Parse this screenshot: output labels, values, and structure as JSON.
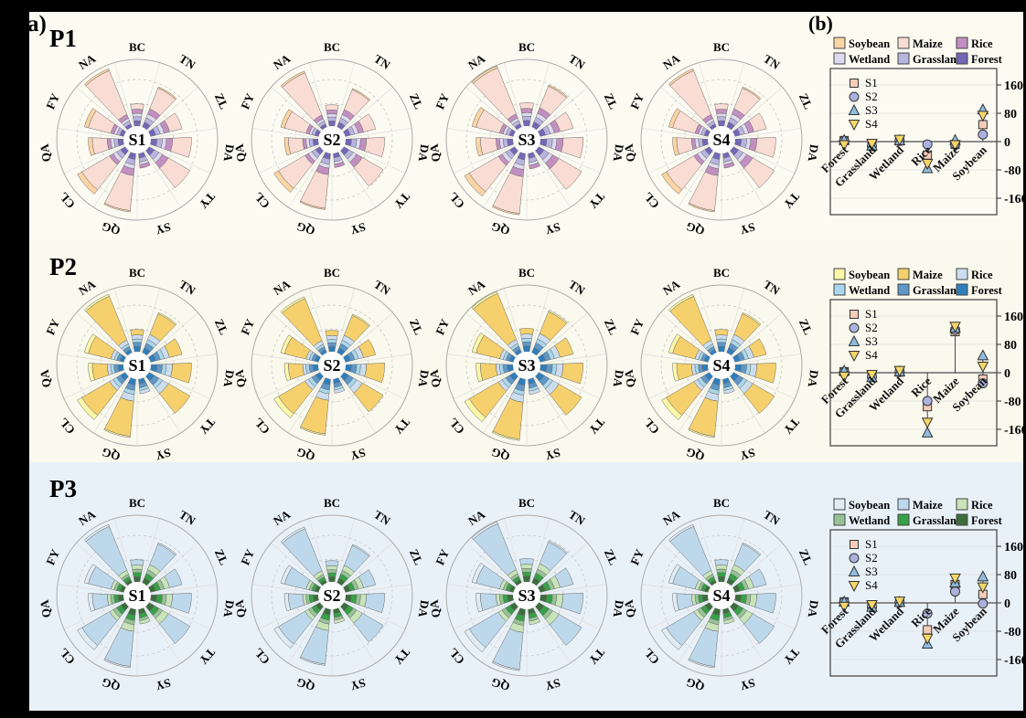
{
  "panel_a_label": "a)",
  "panel_b_label": "(b)",
  "rows": [
    {
      "label": "P1",
      "bg": "#FCFBF2",
      "palette": {
        "soybean": "#FAD4A3",
        "maize": "#F9DCD3",
        "rice": "#C38FC1",
        "wetland": "#DEDAEF",
        "grassland": "#B7B4E0",
        "forest": "#7367B7"
      }
    },
    {
      "label": "P2",
      "bg": "#FAF9ED",
      "palette": {
        "soybean": "#FAF7A8",
        "maize": "#F5D06C",
        "rice": "#CCDDEF",
        "wetland": "#A8D8EB",
        "grassland": "#6097C6",
        "forest": "#2F7EBC"
      }
    },
    {
      "label": "P3",
      "bg": "#E9F1F8",
      "palette": {
        "soybean": "#DFECF4",
        "maize": "#BED8EB",
        "rice": "#C9E4B9",
        "wetland": "#97C296",
        "grassland": "#37A048",
        "forest": "#3C6E3C"
      }
    }
  ],
  "legend": {
    "row1": [
      "Soybean",
      "Maize",
      "Rice"
    ],
    "row2": [
      "Wetland",
      "Grassland",
      "Forest"
    ]
  },
  "series_legend": [
    {
      "name": "S1",
      "marker": "square",
      "color": "#F7CDB9"
    },
    {
      "name": "S2",
      "marker": "circle",
      "color": "#ACB2DD"
    },
    {
      "name": "S3",
      "marker": "triangle-up",
      "color": "#8FBEDF"
    },
    {
      "name": "S4",
      "marker": "triangle-down",
      "color": "#F6D669"
    }
  ],
  "chart_data": {
    "rose": {
      "type": "polar-stacked-bar",
      "sector_labels": [
        "BC",
        "TN",
        "ZL",
        "DA",
        "TY",
        "SY",
        "QG",
        "CL",
        "QA",
        "FY",
        "NA"
      ],
      "stack_order": [
        "forest",
        "grassland",
        "wetland",
        "rice",
        "maize",
        "soybean"
      ],
      "sector_values": [
        [
          8,
          6,
          5,
          6,
          8,
          0
        ],
        [
          8,
          7,
          6,
          8,
          33,
          2
        ],
        [
          8,
          7,
          6,
          8,
          19,
          0
        ],
        [
          9,
          8,
          6,
          9,
          28,
          0
        ],
        [
          9,
          8,
          6,
          10,
          37,
          0
        ],
        [
          7,
          6,
          4,
          5,
          0,
          0
        ],
        [
          9,
          8,
          6,
          10,
          52,
          2
        ],
        [
          8,
          7,
          6,
          6,
          47,
          8
        ],
        [
          8,
          6,
          5,
          5,
          22,
          6
        ],
        [
          6,
          5,
          4,
          5,
          34,
          6
        ],
        [
          5,
          5,
          4,
          6,
          70,
          3
        ]
      ],
      "chart_ids": [
        "S1",
        "S2",
        "S3",
        "S4"
      ],
      "chart_scales": [
        1.0,
        0.96,
        1.05,
        1.0
      ]
    },
    "scatter": [
      {
        "row": "P1",
        "type": "scatter",
        "categories": [
          "Forest",
          "Grassland",
          "Wetland",
          "Rice",
          "Maize",
          "Soybean"
        ],
        "yticks": [
          "160",
          "80",
          "0",
          "-80",
          "-160"
        ],
        "ytick_values": [
          160,
          80,
          0,
          -80,
          -160
        ],
        "ylim": [
          -206,
          206
        ],
        "series": [
          {
            "name": "S1",
            "values": [
              3,
              -13,
              2,
              -38,
              -8,
              48
            ]
          },
          {
            "name": "S2",
            "values": [
              2,
              -13,
              2,
              -8,
              -7,
              20
            ]
          },
          {
            "name": "S3",
            "values": [
              4,
              -12,
              3,
              -76,
              4,
              90
            ]
          },
          {
            "name": "S4",
            "values": [
              -9,
              -5,
              6,
              -62,
              -9,
              74
            ]
          }
        ]
      },
      {
        "row": "P2",
        "type": "scatter",
        "categories": [
          "Forest",
          "Grassland",
          "Wetland",
          "Rice",
          "Maize",
          "Soybean"
        ],
        "yticks": [
          "160",
          "80",
          "0",
          "-80",
          "-160"
        ],
        "ytick_values": [
          160,
          80,
          0,
          -80,
          -160
        ],
        "ylim": [
          -206,
          206
        ],
        "series": [
          {
            "name": "S1",
            "values": [
              3,
              -13,
              2,
              -96,
              116,
              -18
            ]
          },
          {
            "name": "S2",
            "values": [
              2,
              -12,
              2,
              -80,
              121,
              -30
            ]
          },
          {
            "name": "S3",
            "values": [
              5,
              -14,
              3,
              -170,
              126,
              48
            ]
          },
          {
            "name": "S4",
            "values": [
              -10,
              -5,
              6,
              -140,
              131,
              18
            ]
          }
        ]
      },
      {
        "row": "P3",
        "type": "scatter",
        "categories": [
          "Forest",
          "Grassland",
          "Wetland",
          "Rice",
          "Maize",
          "Soybean"
        ],
        "yticks": [
          "160",
          "80",
          "0",
          "-80",
          "-160"
        ],
        "ytick_values": [
          160,
          80,
          0,
          -80,
          -160
        ],
        "ylim": [
          -206,
          206
        ],
        "series": [
          {
            "name": "S1",
            "values": [
              3,
              -10,
              2,
              -76,
              52,
              24
            ]
          },
          {
            "name": "S2",
            "values": [
              2,
              -12,
              1,
              -30,
              32,
              -2
            ]
          },
          {
            "name": "S3",
            "values": [
              3,
              -12,
              2,
              -116,
              57,
              74
            ]
          },
          {
            "name": "S4",
            "values": [
              -10,
              -5,
              5,
              -100,
              70,
              45
            ]
          }
        ]
      }
    ]
  }
}
